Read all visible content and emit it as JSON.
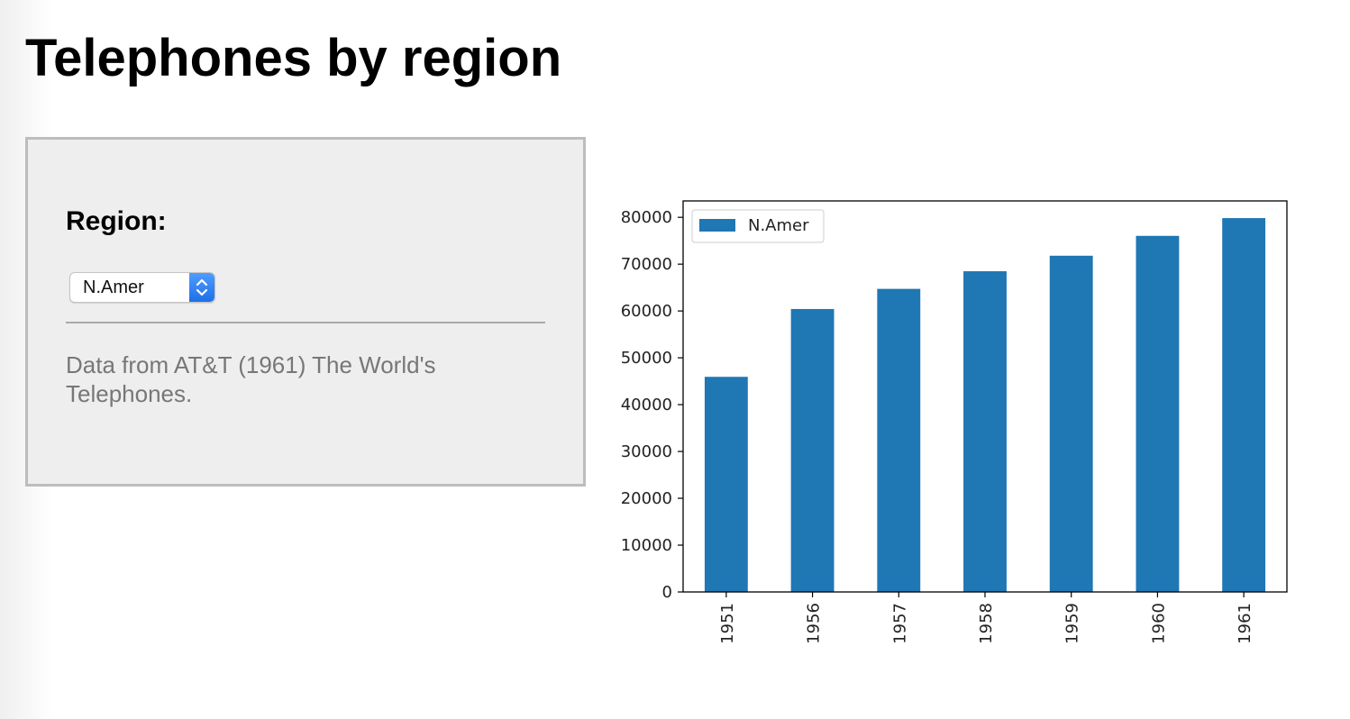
{
  "page": {
    "title": "Telephones by region"
  },
  "sidebar": {
    "region_label": "Region:",
    "region_select": {
      "selected": "N.Amer"
    },
    "help_text": "Data from AT&T (1961) The World's Telephones."
  },
  "chart_data": {
    "type": "bar",
    "categories": [
      "1951",
      "1956",
      "1957",
      "1958",
      "1959",
      "1960",
      "1961"
    ],
    "series": [
      {
        "name": "N.Amer",
        "values": [
          45939,
          60423,
          64721,
          68484,
          71799,
          76036,
          79831
        ],
        "color": "#1f77b4"
      }
    ],
    "title": "",
    "xlabel": "",
    "ylabel": "",
    "ylim": [
      0,
      83500
    ],
    "yticks": [
      0,
      10000,
      20000,
      30000,
      40000,
      50000,
      60000,
      70000,
      80000
    ],
    "grid": false,
    "legend": "top-left"
  }
}
